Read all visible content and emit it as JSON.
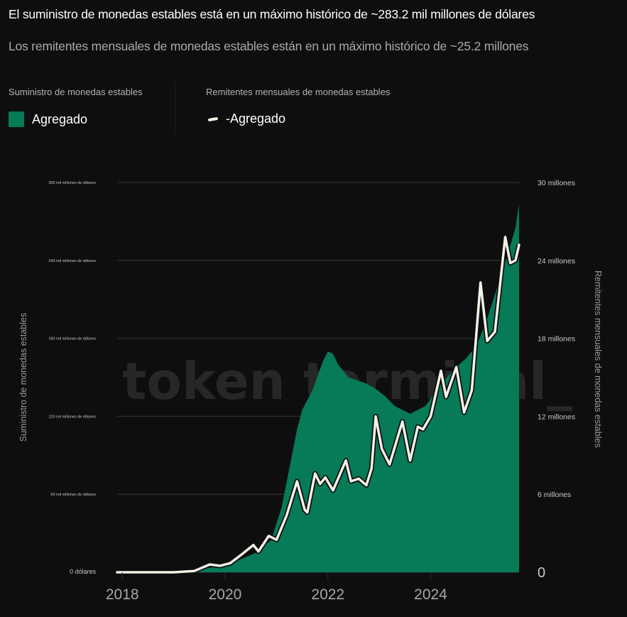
{
  "header": {
    "title": "El suministro de monedas estables está en un máximo histórico de ~283.2 mil millones de dólares",
    "subtitle": "Los remitentes mensuales de monedas estables están en un máximo histórico de ~25.2 millones"
  },
  "legend": {
    "groups": [
      {
        "heading": "Suministro de monedas estables",
        "item": "Agregado",
        "icon": "area-swatch-icon",
        "color": "#077a58"
      },
      {
        "heading": "Remitentes mensuales de monedas estables",
        "item": "-Agregado",
        "icon": "line-swatch-icon",
        "color": "#f3f1e6"
      }
    ]
  },
  "watermark": "token terminal_",
  "colors": {
    "background": "#0e0e0f",
    "area": "#077a58",
    "line": "#f3f1e6",
    "grid": "#2a2a2c"
  },
  "chart_data": {
    "type": "area",
    "title": "El suministro de monedas estables está en un máximo histórico de ~283.2 mil millones de dólares",
    "subtitle": "Los remitentes mensuales de monedas estables están en un máximo histórico de ~25.2 millones",
    "xlabel": "",
    "x_ticks": [
      "2018",
      "2020",
      "2022",
      "2024"
    ],
    "xlim": [
      2017.9,
      2025.72
    ],
    "grid": true,
    "legend_position": "top-left",
    "y_left": {
      "label": "Suministro de monedas estables",
      "ticks": [
        "0 dólares",
        "60 mil millones de dólares",
        "120 mil millones de dólares",
        "180 mil millones de dólares",
        "240 mil millones de dólares",
        "300 mil millones de dólares"
      ],
      "tick_values": [
        0,
        60,
        120,
        180,
        240,
        300
      ],
      "unit": "mil millones USD",
      "ylim": [
        0,
        300
      ]
    },
    "y_right": {
      "label": "Remitentes mensuales de monedas estables",
      "ticks": [
        "0",
        "6 millones",
        "12 millones",
        "18 millones",
        "24 millones",
        "30 millones"
      ],
      "tick_values": [
        0,
        6,
        12,
        18,
        24,
        30
      ],
      "unit": "millones",
      "ylim": [
        0,
        30
      ]
    },
    "series": [
      {
        "name": "Suministro de monedas estables - Agregado",
        "type": "area",
        "axis": "left",
        "color": "#077a58",
        "x": [
          2017.9,
          2018.5,
          2019.0,
          2019.3,
          2019.6,
          2020.0,
          2020.3,
          2020.6,
          2020.9,
          2021.1,
          2021.25,
          2021.4,
          2021.5,
          2021.7,
          2021.9,
          2022.0,
          2022.1,
          2022.2,
          2022.4,
          2022.7,
          2022.9,
          2023.1,
          2023.3,
          2023.6,
          2023.9,
          2024.2,
          2024.5,
          2024.7,
          2024.9,
          2025.1,
          2025.3,
          2025.5,
          2025.65,
          2025.72
        ],
        "values": [
          0.5,
          0.8,
          1.0,
          1.5,
          3,
          5,
          10,
          15,
          25,
          50,
          80,
          110,
          125,
          140,
          162,
          170,
          168,
          160,
          150,
          146,
          142,
          136,
          128,
          122,
          128,
          145,
          158,
          165,
          175,
          195,
          220,
          245,
          265,
          283.2
        ]
      },
      {
        "name": "Remitentes mensuales de monedas estables - Agregado",
        "type": "line",
        "axis": "right",
        "color": "#f3f1e6",
        "x": [
          2017.9,
          2018.5,
          2019.0,
          2019.4,
          2019.7,
          2019.9,
          2020.1,
          2020.3,
          2020.55,
          2020.65,
          2020.85,
          2021.0,
          2021.2,
          2021.4,
          2021.55,
          2021.6,
          2021.75,
          2021.85,
          2021.95,
          2022.1,
          2022.35,
          2022.45,
          2022.6,
          2022.75,
          2022.85,
          2022.93,
          2023.05,
          2023.2,
          2023.45,
          2023.6,
          2023.75,
          2023.85,
          2024.0,
          2024.2,
          2024.3,
          2024.5,
          2024.65,
          2024.8,
          2024.97,
          2025.1,
          2025.25,
          2025.45,
          2025.55,
          2025.65,
          2025.72
        ],
        "values": [
          0.0,
          0.0,
          0.0,
          0.1,
          0.6,
          0.5,
          0.7,
          1.3,
          2.1,
          1.6,
          2.8,
          2.5,
          4.4,
          7.0,
          4.8,
          4.6,
          7.6,
          6.8,
          7.3,
          6.3,
          8.6,
          7.0,
          7.2,
          6.7,
          8.0,
          12.0,
          9.5,
          8.3,
          11.6,
          8.6,
          11.2,
          11.0,
          12.0,
          15.5,
          13.5,
          15.8,
          12.3,
          14.0,
          22.3,
          17.8,
          18.5,
          25.8,
          23.8,
          24.0,
          25.2
        ]
      }
    ]
  }
}
